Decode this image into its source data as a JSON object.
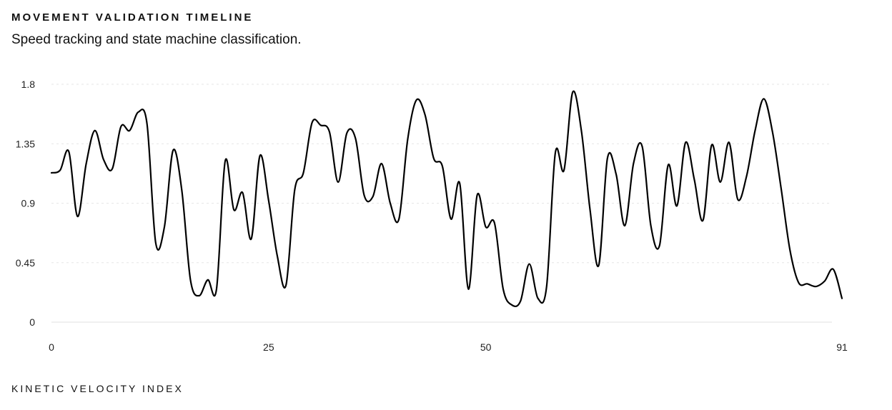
{
  "header": {
    "title": "MOVEMENT VALIDATION TIMELINE",
    "subtitle": "Speed tracking and state machine classification."
  },
  "footer": {
    "xlabel": "KINETIC VELOCITY INDEX"
  },
  "chart_data": {
    "type": "line",
    "title": "MOVEMENT VALIDATION TIMELINE",
    "subtitle": "Speed tracking and state machine classification.",
    "xlabel": "KINETIC VELOCITY INDEX",
    "ylabel": "",
    "xlim": [
      0,
      91
    ],
    "ylim": [
      0,
      1.8
    ],
    "x_ticks": [
      "0",
      "25",
      "50",
      "91"
    ],
    "y_ticks": [
      "0",
      "0.45",
      "0.9",
      "1.35",
      "1.8"
    ],
    "grid": true,
    "series": [
      {
        "name": "",
        "color": "#000000",
        "x": [
          0,
          1,
          2,
          3,
          4,
          5,
          6,
          7,
          8,
          9,
          10,
          11,
          12,
          13,
          14,
          15,
          16,
          17,
          18,
          19,
          20,
          21,
          22,
          23,
          24,
          25,
          26,
          27,
          28,
          29,
          30,
          31,
          32,
          33,
          34,
          35,
          36,
          37,
          38,
          39,
          40,
          41,
          42,
          43,
          44,
          45,
          46,
          47,
          48,
          49,
          50,
          51,
          52,
          53,
          54,
          55,
          56,
          57,
          58,
          59,
          60,
          61,
          62,
          63,
          64,
          65,
          66,
          67,
          68,
          69,
          70,
          71,
          72,
          73,
          74,
          75,
          76,
          77,
          78,
          79,
          80,
          81,
          82,
          83,
          84,
          85,
          86,
          87,
          88,
          89,
          90,
          91
        ],
        "values": [
          1.13,
          1.15,
          1.29,
          0.8,
          1.2,
          1.45,
          1.23,
          1.16,
          1.48,
          1.45,
          1.59,
          1.5,
          0.6,
          0.72,
          1.3,
          1.0,
          0.32,
          0.2,
          0.32,
          0.25,
          1.22,
          0.85,
          0.98,
          0.63,
          1.26,
          0.92,
          0.5,
          0.28,
          1.0,
          1.13,
          1.51,
          1.49,
          1.44,
          1.06,
          1.43,
          1.39,
          0.96,
          0.95,
          1.2,
          0.9,
          0.78,
          1.38,
          1.68,
          1.57,
          1.24,
          1.18,
          0.78,
          1.05,
          0.25,
          0.96,
          0.72,
          0.75,
          0.25,
          0.13,
          0.16,
          0.44,
          0.18,
          0.27,
          1.28,
          1.15,
          1.74,
          1.45,
          0.85,
          0.43,
          1.24,
          1.12,
          0.73,
          1.2,
          1.33,
          0.73,
          0.58,
          1.19,
          0.88,
          1.36,
          1.08,
          0.77,
          1.34,
          1.06,
          1.36,
          0.93,
          1.1,
          1.45,
          1.69,
          1.44,
          1.01,
          0.55,
          0.3,
          0.29,
          0.27,
          0.31,
          0.4,
          0.18
        ]
      }
    ]
  }
}
